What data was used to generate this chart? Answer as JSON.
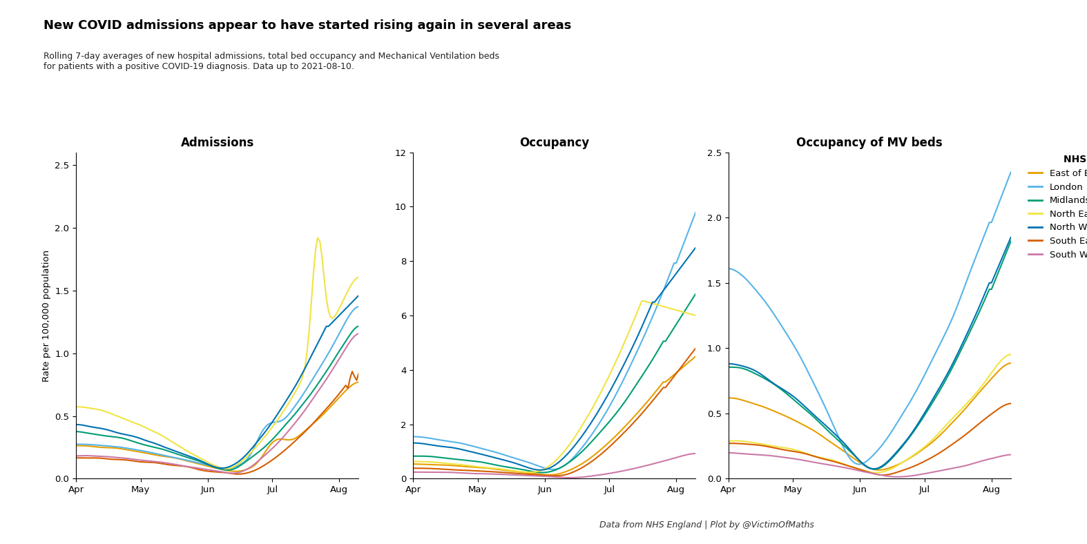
{
  "title": "New COVID admissions appear to have started rising again in several areas",
  "subtitle": "Rolling 7-day averages of new hospital admissions, total bed occupancy and Mechanical Ventilation beds\nfor patients with a positive COVID-19 diagnosis. Data up to 2021-08-10.",
  "footer": "Data from NHS England | Plot by @VictimOfMaths",
  "panel_titles": [
    "Admissions",
    "Occupancy",
    "Occupancy of MV beds"
  ],
  "ylabel": "Rate per 100,000 population",
  "regions": [
    "East of England",
    "London",
    "Midlands",
    "North East and Yorkshire",
    "North West",
    "South East",
    "South West"
  ],
  "colors": [
    "#E69F00",
    "#56B4E9",
    "#009E73",
    "#F0E442",
    "#0072B2",
    "#D55E00",
    "#CC79A7"
  ],
  "background_color": "#FFFFFF",
  "admissions_ylim": [
    0,
    2.6
  ],
  "occupancy_ylim": [
    0,
    12
  ],
  "mv_ylim": [
    0,
    2.5
  ]
}
